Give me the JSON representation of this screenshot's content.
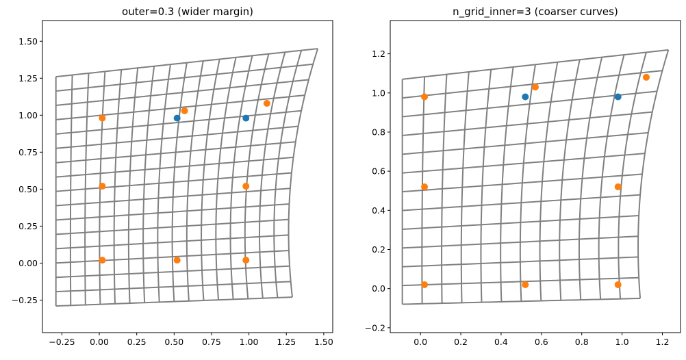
{
  "chart_data": [
    {
      "type": "scatter",
      "title": "outer=0.3 (wider margin)",
      "xlim": [
        -0.38,
        1.56
      ],
      "ylim": [
        -0.47,
        1.64
      ],
      "xticks": [
        -0.25,
        0.0,
        0.25,
        0.5,
        0.75,
        1.0,
        1.25,
        1.5
      ],
      "xtick_labels": [
        "−0.25",
        "0.00",
        "0.25",
        "0.50",
        "0.75",
        "1.00",
        "1.25",
        "1.50"
      ],
      "yticks": [
        -0.25,
        0.0,
        0.25,
        0.5,
        0.75,
        1.0,
        1.25,
        1.5
      ],
      "ytick_labels": [
        "−0.25",
        "0.00",
        "0.25",
        "0.50",
        "0.75",
        "1.00",
        "1.25",
        "1.50"
      ],
      "warp_grid": {
        "corners": {
          "bl": [
            -0.29,
            -0.29
          ],
          "br": [
            1.29,
            -0.23
          ],
          "tl": [
            -0.29,
            1.26
          ],
          "tr": [
            1.46,
            1.45
          ]
        },
        "right_bulge": -0.09,
        "divisions": 16
      },
      "series": [
        {
          "color": "#1f77b4",
          "points": [
            [
              0.52,
              0.98
            ],
            [
              0.98,
              0.98
            ]
          ]
        },
        {
          "color": "#ff7f0e",
          "points": [
            [
              0.02,
              0.98
            ],
            [
              0.57,
              1.03
            ],
            [
              1.12,
              1.08
            ],
            [
              0.02,
              0.52
            ],
            [
              0.98,
              0.52
            ],
            [
              0.02,
              0.02
            ],
            [
              0.52,
              0.02
            ],
            [
              0.98,
              0.02
            ]
          ]
        }
      ]
    },
    {
      "type": "scatter",
      "title": "n_grid_inner=3 (coarser curves)",
      "xlim": [
        -0.15,
        1.29
      ],
      "ylim": [
        -0.225,
        1.37
      ],
      "xticks": [
        0.0,
        0.2,
        0.4,
        0.6,
        0.8,
        1.0,
        1.2
      ],
      "xtick_labels": [
        "0.0",
        "0.2",
        "0.4",
        "0.6",
        "0.8",
        "1.0",
        "1.2"
      ],
      "yticks": [
        -0.2,
        0.0,
        0.2,
        0.4,
        0.6,
        0.8,
        1.0,
        1.2
      ],
      "ytick_labels": [
        "−0.2",
        "0.0",
        "0.2",
        "0.4",
        "0.6",
        "0.8",
        "1.0",
        "1.2"
      ],
      "warp_grid": {
        "corners": {
          "bl": [
            -0.09,
            -0.08
          ],
          "br": [
            1.09,
            -0.05
          ],
          "tl": [
            -0.09,
            1.07
          ],
          "tr": [
            1.23,
            1.22
          ]
        },
        "right_bulge": -0.06,
        "divisions": 12
      },
      "series": [
        {
          "color": "#1f77b4",
          "points": [
            [
              0.52,
              0.98
            ],
            [
              0.98,
              0.98
            ]
          ]
        },
        {
          "color": "#ff7f0e",
          "points": [
            [
              0.02,
              0.98
            ],
            [
              0.57,
              1.03
            ],
            [
              1.12,
              1.08
            ],
            [
              0.02,
              0.52
            ],
            [
              0.98,
              0.52
            ],
            [
              0.02,
              0.02
            ],
            [
              0.52,
              0.02
            ],
            [
              0.98,
              0.02
            ]
          ]
        }
      ]
    }
  ]
}
